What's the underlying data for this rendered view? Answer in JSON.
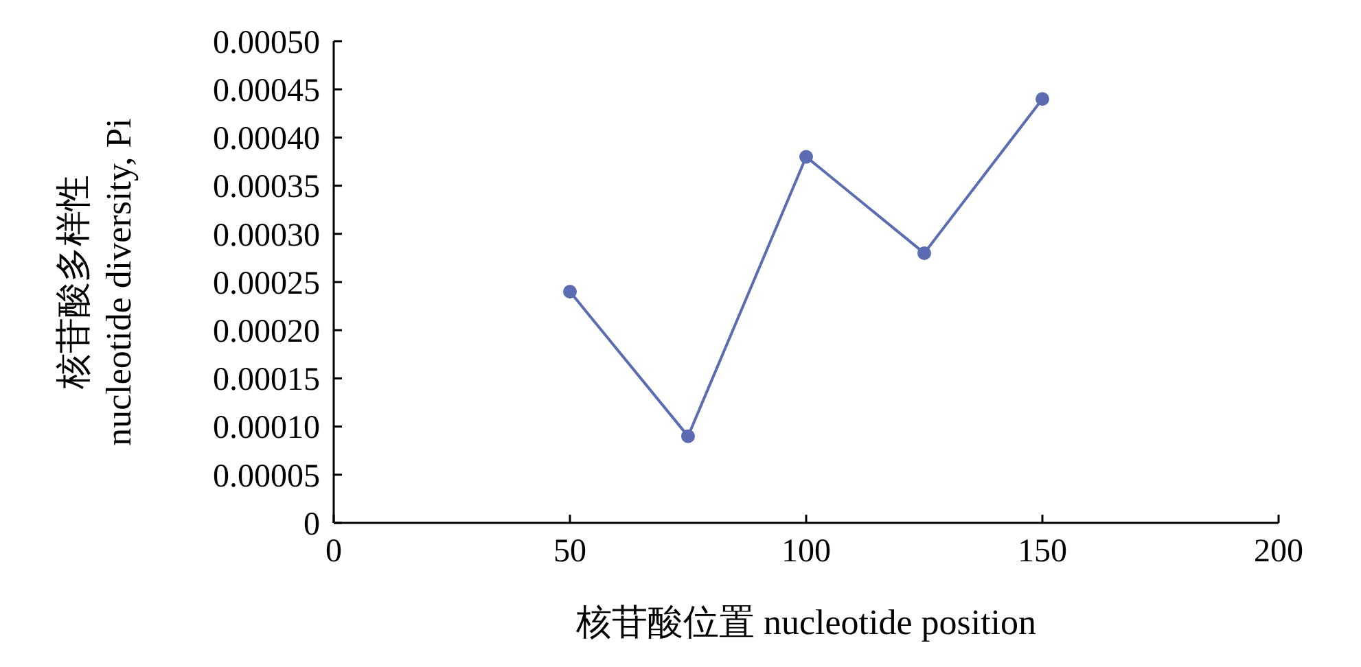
{
  "chart_data": {
    "type": "line",
    "xlabel": "核苷酸位置 nucleotide position",
    "ylabel": "核苷酸多样性\nnucleotide diversity, Pi",
    "x": [
      50,
      75,
      100,
      125,
      150
    ],
    "series": [
      {
        "color": "#5b6cb3",
        "values": [
          0.00024,
          9e-05,
          0.00038,
          0.00028,
          0.00044
        ]
      }
    ],
    "xlim": [
      0,
      200
    ],
    "xticks": [
      0,
      50,
      100,
      150,
      200
    ],
    "ylim": [
      0,
      0.0005
    ],
    "yticks": [
      {
        "value": 0,
        "label": "0"
      },
      {
        "value": 5e-05,
        "label": "0.00005"
      },
      {
        "value": 0.0001,
        "label": "0.00010"
      },
      {
        "value": 0.00015,
        "label": "0.00015"
      },
      {
        "value": 0.0002,
        "label": "0.00020"
      },
      {
        "value": 0.00025,
        "label": "0.00025"
      },
      {
        "value": 0.0003,
        "label": "0.00030"
      },
      {
        "value": 0.00035,
        "label": "0.00035"
      },
      {
        "value": 0.0004,
        "label": "0.00040"
      },
      {
        "value": 0.00045,
        "label": "0.00045"
      },
      {
        "value": 0.0005,
        "label": "0.00050"
      }
    ],
    "grid": false,
    "marker": "circle",
    "line_style": "solid"
  }
}
